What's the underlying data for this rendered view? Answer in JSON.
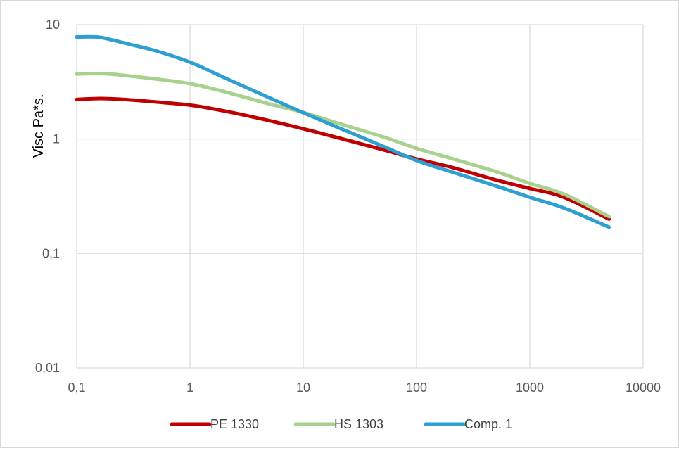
{
  "chart_data": {
    "type": "line",
    "title": "",
    "xlabel": "",
    "ylabel": "Visc Pa*s.",
    "x_scale": "log",
    "y_scale": "log",
    "xlim": [
      0.1,
      10000
    ],
    "ylim": [
      0.01,
      10
    ],
    "x_ticks": [
      "0,1",
      "1",
      "10",
      "100",
      "1000",
      "10000"
    ],
    "y_ticks": [
      "10",
      "1",
      "0,1",
      "0,01"
    ],
    "grid": true,
    "legend_position": "bottom",
    "series": [
      {
        "name": "PE 1330",
        "color": "#c00000",
        "x": [
          0.1,
          0.15,
          0.2,
          0.3,
          0.5,
          1,
          2,
          5,
          10,
          20,
          50,
          100,
          200,
          500,
          1000,
          2000,
          5000
        ],
        "y": [
          2.22,
          2.26,
          2.25,
          2.2,
          2.11,
          1.98,
          1.76,
          1.45,
          1.23,
          1.03,
          0.81,
          0.67,
          0.57,
          0.44,
          0.37,
          0.31,
          0.2
        ]
      },
      {
        "name": "HS 1303",
        "color": "#a9d18e",
        "x": [
          0.1,
          0.15,
          0.2,
          0.3,
          0.5,
          1,
          2,
          5,
          10,
          20,
          50,
          100,
          200,
          500,
          1000,
          2000,
          5000
        ],
        "y": [
          3.7,
          3.74,
          3.7,
          3.55,
          3.35,
          3.05,
          2.6,
          2.03,
          1.71,
          1.38,
          1.05,
          0.83,
          0.68,
          0.52,
          0.41,
          0.33,
          0.21
        ]
      },
      {
        "name": "Comp. 1",
        "color": "#2e9fd1",
        "x": [
          0.1,
          0.15,
          0.2,
          0.3,
          0.5,
          1,
          2,
          5,
          10,
          20,
          50,
          100,
          200,
          500,
          1000,
          2000,
          5000
        ],
        "y": [
          7.8,
          7.8,
          7.4,
          6.7,
          5.9,
          4.7,
          3.45,
          2.3,
          1.7,
          1.27,
          0.87,
          0.65,
          0.52,
          0.39,
          0.31,
          0.25,
          0.17
        ]
      }
    ]
  }
}
